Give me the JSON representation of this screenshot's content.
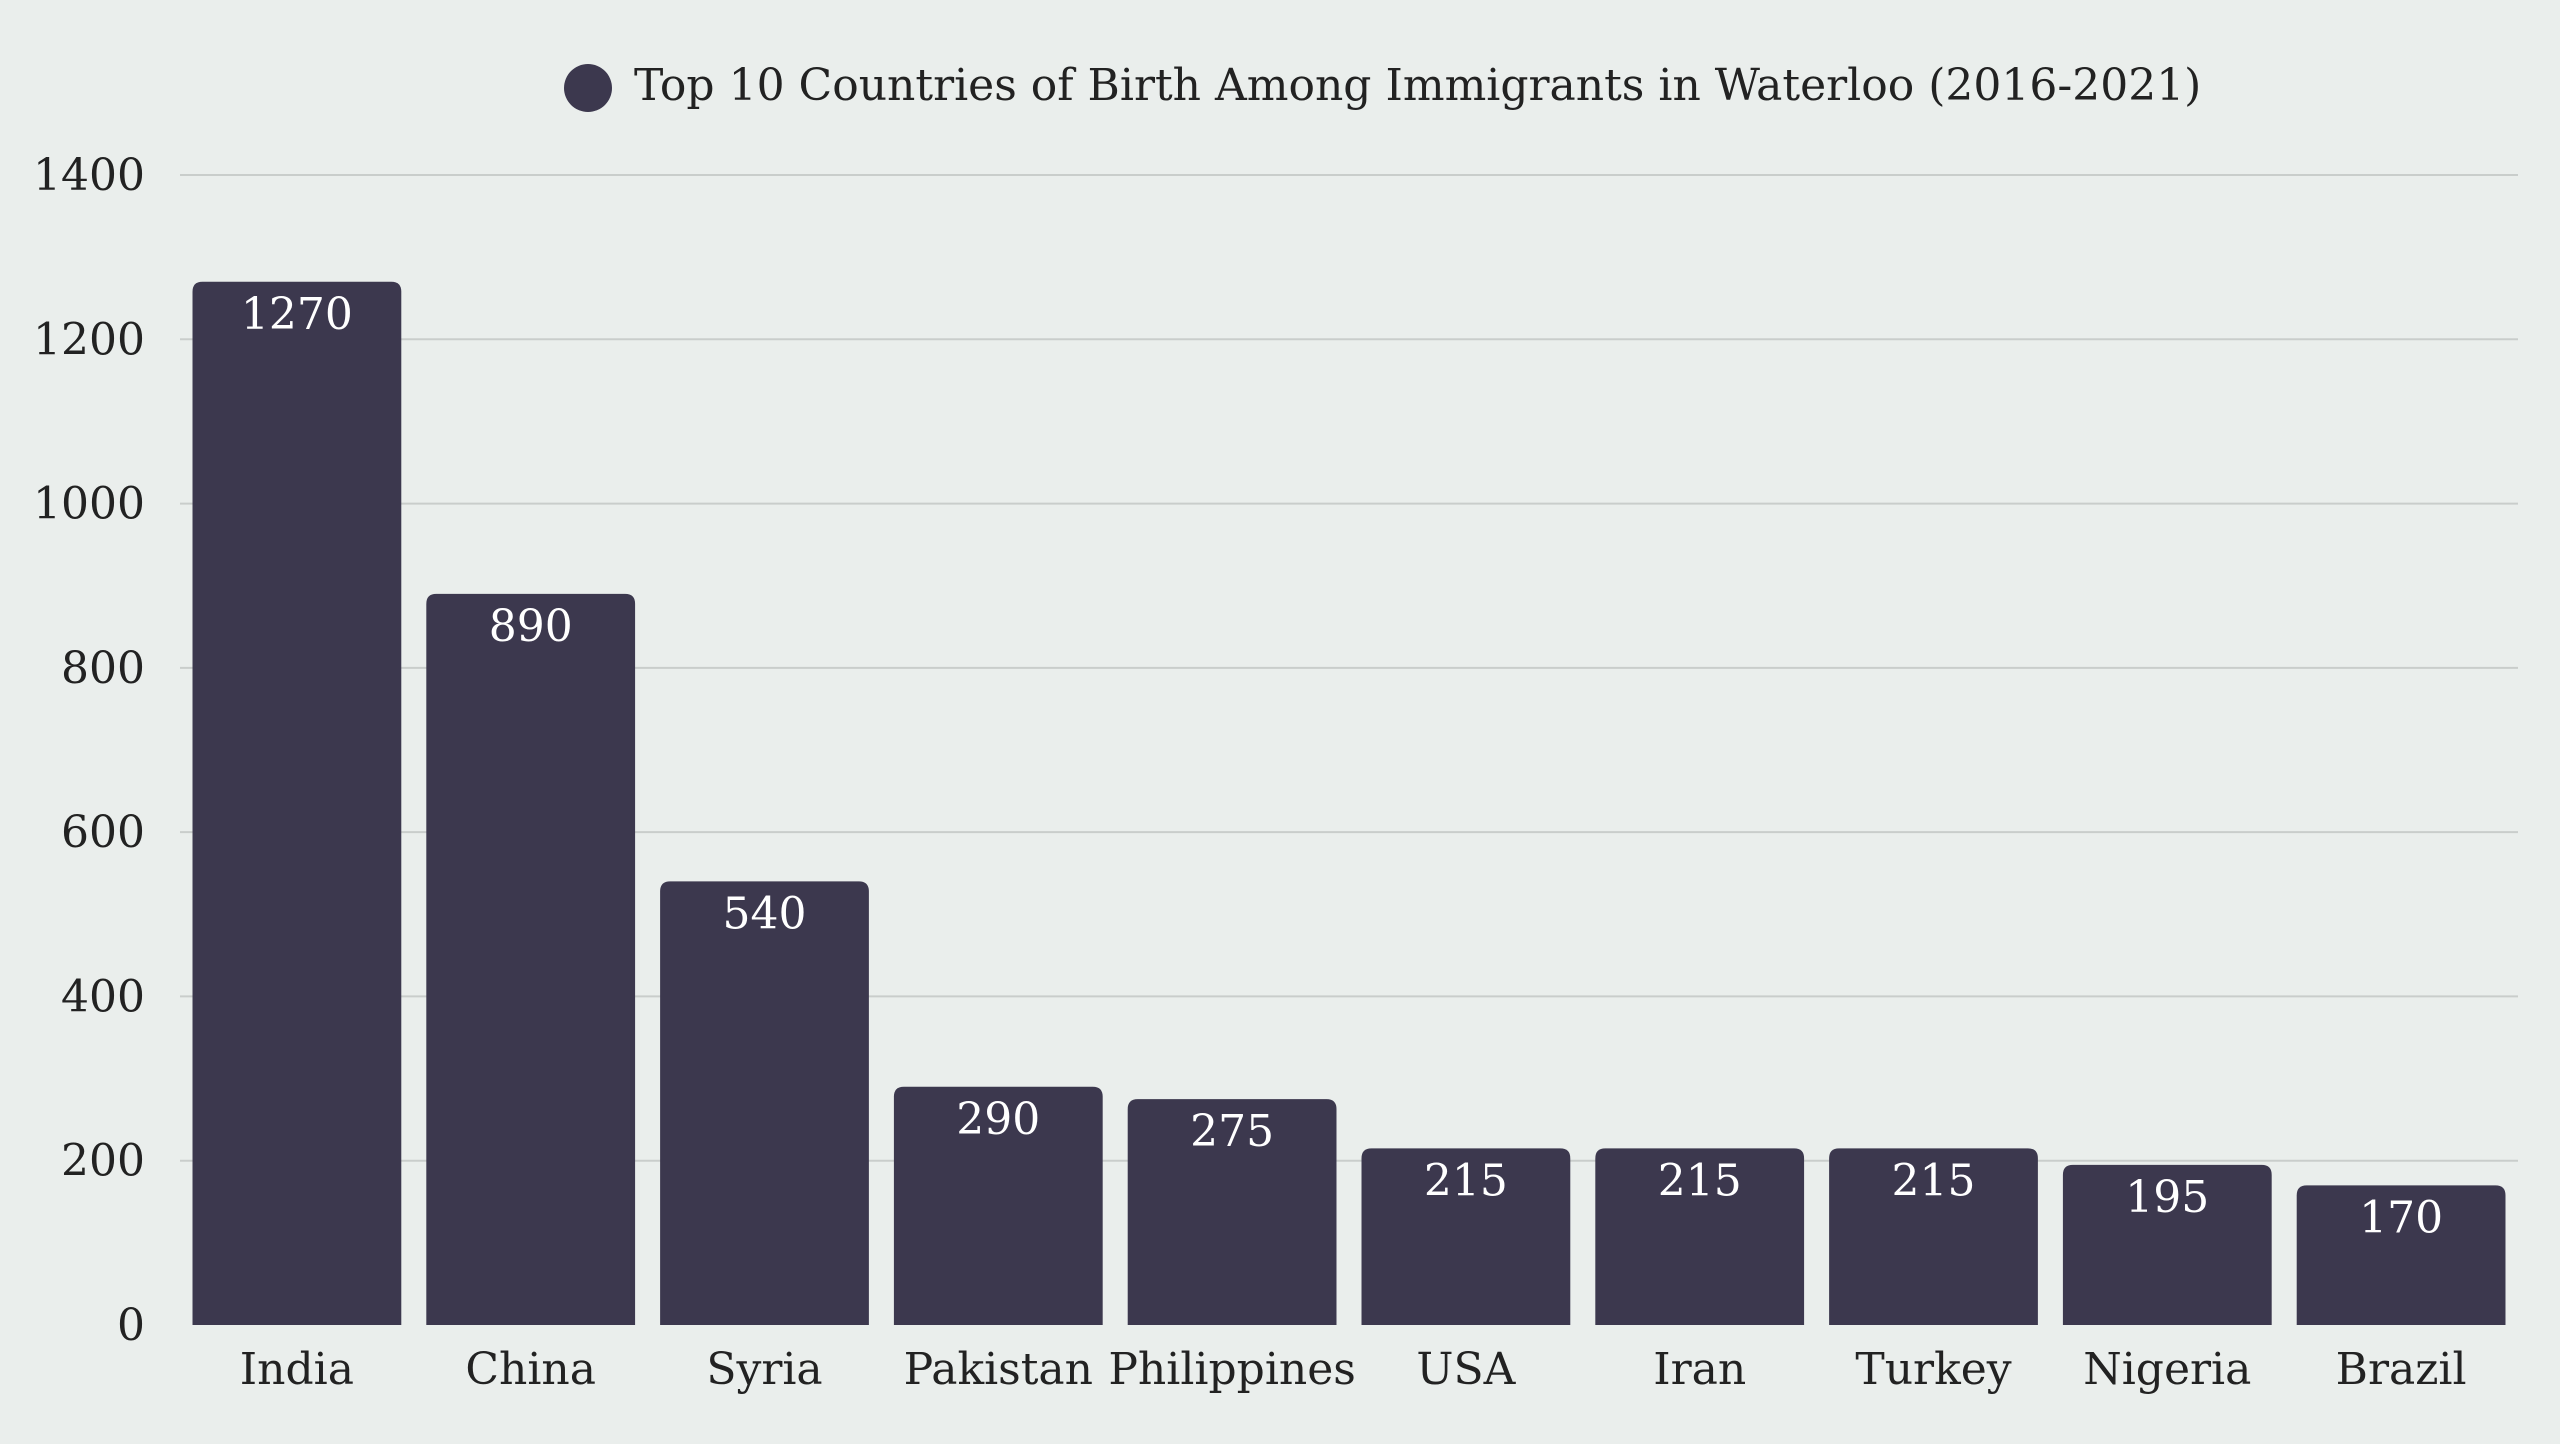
{
  "colors": {
    "background": "#EAEEEC",
    "bar": "#3C384E",
    "gridline": "#C9CDCB",
    "text": "#222222",
    "data_label": "#FFFFFF"
  },
  "chart_data": {
    "type": "bar",
    "title": "",
    "xlabel": "",
    "ylabel": "",
    "ylim": [
      0,
      1400
    ],
    "yticks": [
      0,
      200,
      400,
      600,
      800,
      1000,
      1200,
      1400
    ],
    "grid": true,
    "legend_position": "top-center",
    "categories": [
      "India",
      "China",
      "Syria",
      "Pakistan",
      "Philippines",
      "USA",
      "Iran",
      "Turkey",
      "Nigeria",
      "Brazil"
    ],
    "series": [
      {
        "name": "Top 10 Countries of Birth Among Immigrants in Waterloo (2016-2021)",
        "color": "#3C384E",
        "values": [
          1270,
          890,
          540,
          290,
          275,
          215,
          215,
          215,
          195,
          170
        ]
      }
    ]
  }
}
